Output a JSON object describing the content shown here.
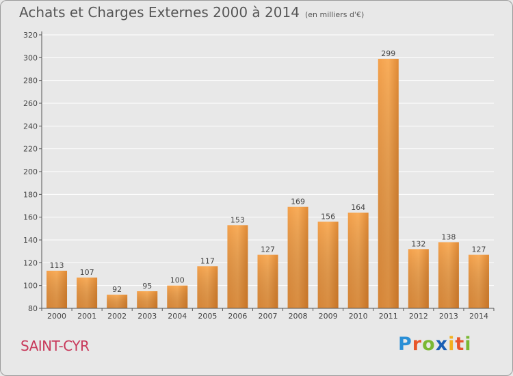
{
  "header": {
    "title": "Achats et Charges Externes 2000 à 2014",
    "unit": "(en milliers d'€)"
  },
  "footer": {
    "city": "SAINT-CYR",
    "logo": "Proxiti"
  },
  "colors": {
    "bar_light": "#f7a64f",
    "bar_dark": "#d9741c",
    "axis": "#555555",
    "grid": "#ffffff",
    "city": "#c8385a"
  },
  "chart_data": {
    "type": "bar",
    "title": "Achats et Charges Externes 2000 à 2014",
    "subtitle": "(en milliers d'€)",
    "xlabel": "",
    "ylabel": "",
    "ylim": [
      80,
      320
    ],
    "y_ticks": [
      80,
      100,
      120,
      140,
      160,
      180,
      200,
      220,
      240,
      260,
      280,
      300,
      320
    ],
    "grid": true,
    "categories": [
      "2000",
      "2001",
      "2002",
      "2003",
      "2004",
      "2005",
      "2006",
      "2007",
      "2008",
      "2009",
      "2010",
      "2011",
      "2012",
      "2013",
      "2014"
    ],
    "values": [
      113,
      107,
      92,
      95,
      100,
      117,
      153,
      127,
      169,
      156,
      164,
      299,
      132,
      138,
      127
    ]
  }
}
